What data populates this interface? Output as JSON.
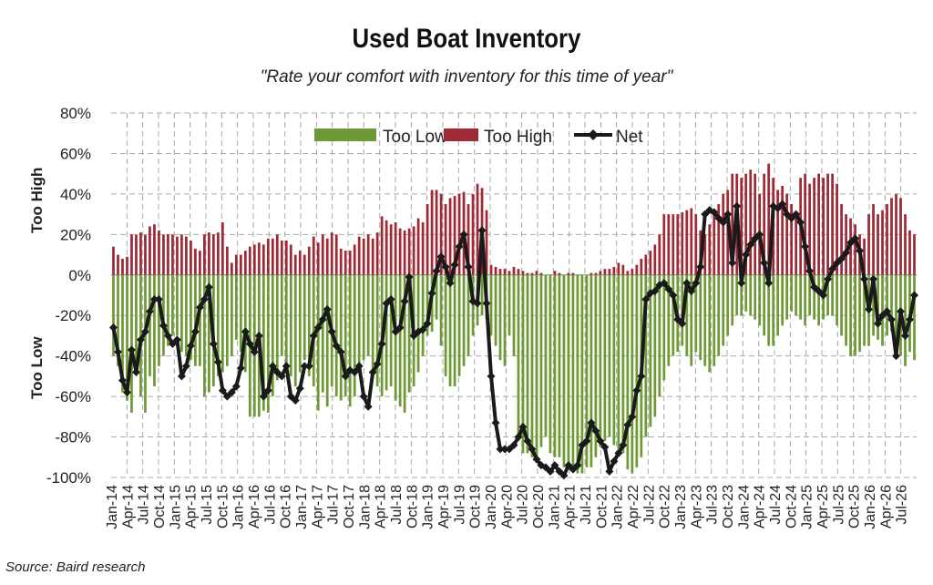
{
  "title": "Used Boat Inventory",
  "subtitle": "\"Rate your comfort with inventory for this time of year\"",
  "source": "Source: Baird research",
  "chart_data": {
    "type": "bar",
    "title": "Used Boat Inventory",
    "subtitle": "\"Rate your comfort with inventory for this time of year\"",
    "side_labels": {
      "top": "Too High",
      "bottom": "Too Low"
    },
    "ylim": [
      -100,
      80
    ],
    "y_ticks": [
      "80%",
      "60%",
      "40%",
      "20%",
      "0%",
      "-20%",
      "-40%",
      "-60%",
      "-80%",
      "-100%"
    ],
    "y_tick_values": [
      80,
      60,
      40,
      20,
      0,
      -20,
      -40,
      -60,
      -80,
      -100
    ],
    "x_tick_labels": [
      "Jan-14",
      "Apr-14",
      "Jul-14",
      "Oct-14",
      "Jan-15",
      "Apr-15",
      "Jul-15",
      "Oct-15",
      "Jan-16",
      "Apr-16",
      "Jul-16",
      "Oct-16",
      "Jan-17",
      "Apr-17",
      "Jul-17",
      "Oct-17",
      "Jan-18",
      "Apr-18",
      "Jul-18",
      "Oct-18",
      "Jan-19",
      "Apr-19",
      "Jul-19",
      "Oct-19",
      "Jan-20",
      "Apr-20",
      "Jul-20",
      "Oct-20",
      "Jan-21",
      "Apr-21",
      "Jul-21",
      "Oct-21",
      "Jan-22",
      "Apr-22",
      "Jul-22",
      "Oct-22",
      "Jan-23",
      "Apr-23",
      "Jul-23",
      "Oct-23",
      "Jan-24",
      "Apr-24",
      "Jul-24",
      "Oct-24",
      "Jan-25",
      "Apr-25",
      "Jul-25",
      "Oct-25",
      "Jan-26",
      "Apr-26",
      "Jul-26"
    ],
    "grid": true,
    "legend_position": "top",
    "colors": {
      "too_low": "#6E9A35",
      "too_high": "#9E2A35",
      "net": "#1a1a1a"
    },
    "series": [
      {
        "name": "Too Low",
        "kind": "bar",
        "values": [
          -40,
          -45,
          -58,
          -62,
          -68,
          -45,
          -60,
          -68,
          -50,
          -55,
          -45,
          -40,
          -35,
          -30,
          -30,
          -38,
          -40,
          -42,
          -45,
          -45,
          -60,
          -58,
          -55,
          -50,
          -48,
          -45,
          -40,
          -32,
          -38,
          -48,
          -70,
          -70,
          -70,
          -67,
          -68,
          -60,
          -52,
          -40,
          -45,
          -50,
          -55,
          -48,
          -42,
          -50,
          -55,
          -67,
          -58,
          -65,
          -55,
          -60,
          -62,
          -60,
          -65,
          -60,
          -48,
          -42,
          -40,
          -50,
          -55,
          -60,
          -57,
          -55,
          -62,
          -65,
          -68,
          -58,
          -55,
          -48,
          -40,
          -30,
          -28,
          -22,
          -35,
          -50,
          -55,
          -55,
          -50,
          -45,
          -40,
          -30,
          -25,
          -20,
          -22,
          -30,
          -35,
          -42,
          -45,
          -30,
          -40,
          -82,
          -88,
          -88,
          -90,
          -90,
          -85,
          -80,
          -88,
          -90,
          -90,
          -95,
          -95,
          -96,
          -98,
          -98,
          -95,
          -95,
          -90,
          -85,
          -82,
          -80,
          -84,
          -86,
          -88,
          -96,
          -98,
          -95,
          -90,
          -80,
          -75,
          -70,
          -60,
          -52,
          -45,
          -40,
          -38,
          -35,
          -40,
          -45,
          -38,
          -42,
          -45,
          -48,
          -45,
          -40,
          -35,
          -30,
          -25,
          -20,
          -20,
          -18,
          -20,
          -22,
          -25,
          -30,
          -35,
          -35,
          -30,
          -25,
          -22,
          -18,
          -20,
          -22,
          -25,
          -20,
          -22,
          -25,
          -22,
          -20,
          -20,
          -25,
          -30,
          -35,
          -40,
          -40,
          -38,
          -35,
          -35,
          -30,
          -32,
          -35,
          -30,
          -28,
          -32,
          -40,
          -45,
          -38,
          -42,
          -48,
          -55,
          -60,
          -52,
          -48,
          -55,
          -45,
          -40,
          -35
        ]
      },
      {
        "name": "Too High",
        "kind": "bar",
        "values": [
          14,
          10,
          8,
          9,
          20,
          20,
          21,
          20,
          24,
          25,
          22,
          20,
          20,
          20,
          19,
          20,
          19,
          17,
          13,
          12,
          20,
          21,
          20,
          21,
          26,
          14,
          6,
          10,
          10,
          12,
          14,
          15,
          16,
          15,
          18,
          18,
          20,
          17,
          17,
          15,
          10,
          12,
          10,
          14,
          19,
          16,
          20,
          18,
          21,
          20,
          13,
          12,
          12,
          15,
          19,
          18,
          20,
          18,
          21,
          29,
          27,
          25,
          26,
          23,
          22,
          23,
          24,
          28,
          26,
          35,
          42,
          42,
          40,
          35,
          38,
          39,
          40,
          41,
          35,
          40,
          45,
          43,
          32,
          5,
          4,
          3,
          3,
          2,
          4,
          3,
          2,
          1,
          1,
          2,
          1,
          0,
          0,
          2,
          1,
          0,
          1,
          1,
          0,
          0,
          0,
          1,
          1,
          2,
          3,
          3,
          4,
          6,
          5,
          2,
          3,
          5,
          8,
          10,
          12,
          15,
          20,
          30,
          30,
          30,
          30,
          31,
          32,
          33,
          30,
          22,
          20,
          25,
          30,
          35,
          40,
          42,
          50,
          50,
          48,
          50,
          52,
          50,
          40,
          50,
          55,
          48,
          42,
          44,
          40,
          35,
          30,
          48,
          50,
          45,
          48,
          50,
          48,
          50,
          50,
          45,
          35,
          30,
          28,
          25,
          20,
          18,
          30,
          35,
          30,
          32,
          35,
          38,
          40,
          38,
          30,
          22,
          20,
          28,
          26,
          24,
          25,
          22,
          20,
          25,
          25,
          22,
          25,
          24,
          20,
          23
        ]
      },
      {
        "name": "Net",
        "kind": "line",
        "values": [
          -26,
          -38,
          -52,
          -58,
          -37,
          -48,
          -32,
          -28,
          -18,
          -12,
          -12,
          -25,
          -30,
          -34,
          -32,
          -50,
          -45,
          -35,
          -28,
          -16,
          -12,
          -6,
          -34,
          -43,
          -57,
          -60,
          -58,
          -55,
          -46,
          -28,
          -34,
          -38,
          -30,
          -60,
          -57,
          -45,
          -48,
          -50,
          -45,
          -60,
          -62,
          -56,
          -45,
          -45,
          -30,
          -26,
          -22,
          -17,
          -28,
          -35,
          -38,
          -50,
          -47,
          -48,
          -45,
          -60,
          -65,
          -48,
          -44,
          -34,
          -14,
          -12,
          -28,
          -26,
          -13,
          -1,
          -30,
          -28,
          -27,
          -24,
          -9,
          2,
          9,
          4,
          -4,
          5,
          14,
          20,
          4,
          -13,
          -14,
          22,
          -14,
          -50,
          -73,
          -86,
          -86,
          -86,
          -84,
          -80,
          -75,
          -82,
          -86,
          -91,
          -94,
          -95,
          -97,
          -94,
          -97,
          -99,
          -94,
          -96,
          -94,
          -84,
          -82,
          -73,
          -77,
          -82,
          -85,
          -97,
          -92,
          -88,
          -84,
          -74,
          -70,
          -57,
          -50,
          -12,
          -9,
          -8,
          -5,
          -4,
          -7,
          -10,
          -22,
          -24,
          -4,
          -8,
          -4,
          4,
          30,
          32,
          31,
          28,
          26,
          30,
          6,
          34,
          -4,
          10,
          15,
          18,
          20,
          6,
          -4,
          34,
          33,
          35,
          30,
          28,
          30,
          26,
          14,
          2,
          -6,
          -8,
          -10,
          -2,
          3,
          6,
          8,
          11,
          16,
          18,
          12,
          -2,
          -17,
          -2,
          -24,
          -20,
          -18,
          -22,
          -40,
          -18,
          -30,
          -22,
          -10
        ]
      }
    ]
  }
}
